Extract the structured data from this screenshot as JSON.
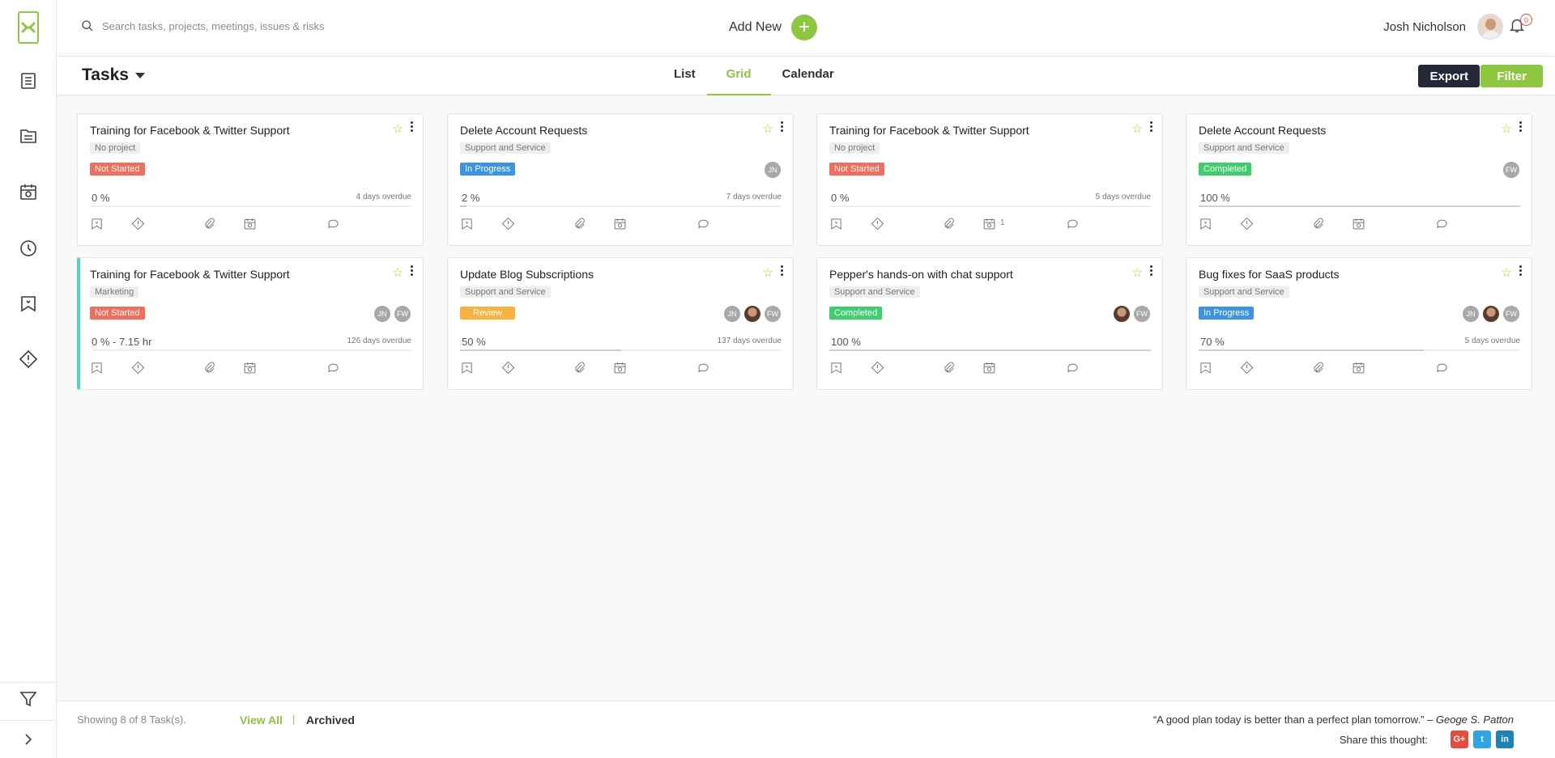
{
  "header": {
    "search_placeholder": "Search tasks, projects, meetings, issues & risks",
    "add_new_label": "Add New",
    "add_new_icon": "+",
    "user_name": "Josh Nicholson",
    "notification_count": "0"
  },
  "subheader": {
    "title": "Tasks",
    "tabs": [
      {
        "label": "List",
        "active": false
      },
      {
        "label": "Grid",
        "active": true
      },
      {
        "label": "Calendar",
        "active": false
      }
    ],
    "export_label": "Export",
    "filter_label": "Filter"
  },
  "status_colors": {
    "Not Started": "#f26d5b",
    "In Progress": "#3b93e8",
    "Completed": "#3ccf6c",
    "Review": "#f7b33d"
  },
  "cards": [
    {
      "title": "Training for Facebook & Twitter Support",
      "project": "No project",
      "status": "Not Started",
      "status_class": "st-notstarted",
      "progress_label": "0 %",
      "progress": 0,
      "overdue": "4 days overdue",
      "calendar_count": "",
      "avatars": [],
      "accent": false
    },
    {
      "title": "Delete Account Requests",
      "project": "Support and Service",
      "status": "In Progress",
      "status_class": "st-inprogress",
      "progress_label": "2 %",
      "progress": 2,
      "overdue": "7 days overdue",
      "calendar_count": "",
      "avatars": [
        "JN"
      ],
      "accent": false
    },
    {
      "title": "Training for Facebook & Twitter Support",
      "project": "No project",
      "status": "Not Started",
      "status_class": "st-notstarted",
      "progress_label": "0 %",
      "progress": 0,
      "overdue": "5 days overdue",
      "calendar_count": "1",
      "avatars": [],
      "accent": false
    },
    {
      "title": "Delete Account Requests",
      "project": "Support and Service",
      "status": "Completed",
      "status_class": "st-completed",
      "progress_label": "100 %",
      "progress": 100,
      "overdue": "",
      "calendar_count": "",
      "avatars": [
        "FW"
      ],
      "accent": false
    },
    {
      "title": "Training for Facebook & Twitter Support",
      "project": "Marketing",
      "status": "Not Started",
      "status_class": "st-notstarted",
      "progress_label": "0 % - 7.15 hr",
      "progress": 0,
      "overdue": "126 days overdue",
      "calendar_count": "",
      "avatars": [
        "JN",
        "FW"
      ],
      "accent": true
    },
    {
      "title": "Update Blog Subscriptions",
      "project": "Support and Service",
      "status": "Review",
      "status_class": "st-review",
      "progress_label": "50 %",
      "progress": 50,
      "overdue": "137 days overdue",
      "calendar_count": "",
      "avatars": [
        "JN",
        "photo",
        "FW"
      ],
      "accent": false
    },
    {
      "title": "Pepper's hands-on with chat support",
      "project": "Support and Service",
      "status": "Completed",
      "status_class": "st-completed",
      "progress_label": "100 %",
      "progress": 100,
      "overdue": "",
      "calendar_count": "",
      "avatars": [
        "photo",
        "FW"
      ],
      "accent": false
    },
    {
      "title": "Bug fixes for SaaS products",
      "project": "Support and Service",
      "status": "In Progress",
      "status_class": "st-inprogress",
      "progress_label": "70 %",
      "progress": 70,
      "overdue": "5 days overdue",
      "calendar_count": "",
      "avatars": [
        "JN",
        "photo",
        "FW"
      ],
      "accent": false
    }
  ],
  "footer": {
    "showing": "Showing 8 of 8 Task(s).",
    "view_all": "View All",
    "separator": "|",
    "archived": "Archived",
    "quote_text": "“A good plan today is better than a perfect plan tomorrow.” –",
    "quote_author": "Geoge S. Patton",
    "share_label": "Share this thought:",
    "social": [
      "G+",
      "t",
      "in"
    ]
  }
}
